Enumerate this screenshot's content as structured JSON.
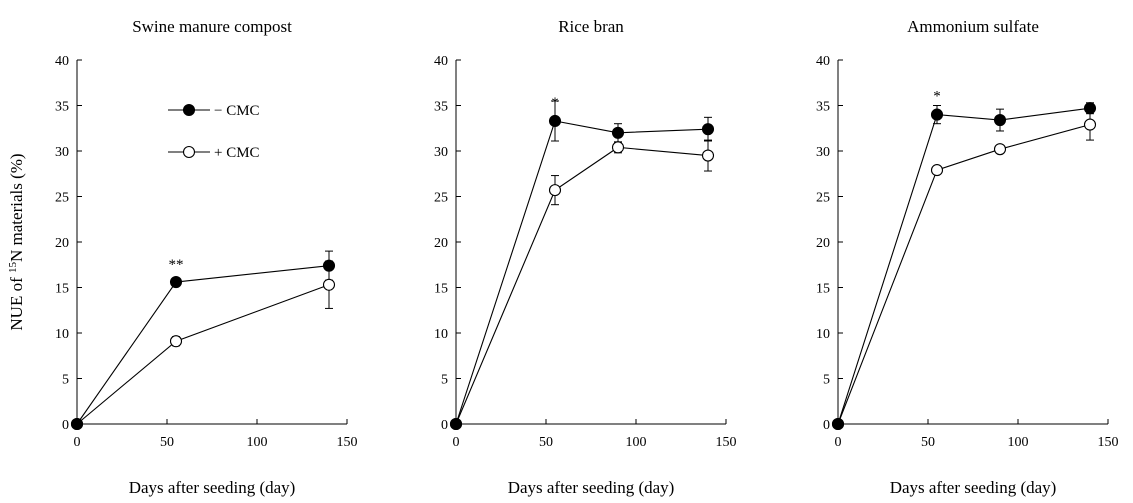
{
  "chart_data": [
    {
      "type": "line",
      "title": "Swine manure compost",
      "xlabel": "Days after seeding (day)",
      "ylabel": "NUE of 15N materials (%)",
      "xlim": [
        0,
        150
      ],
      "ylim": [
        0,
        40
      ],
      "xticks": [
        0,
        50,
        100,
        150
      ],
      "yticks": [
        0,
        5,
        10,
        15,
        20,
        25,
        30,
        35,
        40
      ],
      "legend": {
        "placement": "top-left"
      },
      "series": [
        {
          "name": "− CMC",
          "marker": "filled",
          "x": [
            0,
            55,
            140
          ],
          "y": [
            0,
            15.6,
            17.4
          ],
          "err": [
            0,
            0.4,
            1.6
          ]
        },
        {
          "name": "+ CMC",
          "marker": "open",
          "x": [
            0,
            55,
            140
          ],
          "y": [
            0,
            9.1,
            15.3
          ],
          "err": [
            0,
            0.5,
            2.6
          ]
        }
      ],
      "annotations": [
        {
          "text": "**",
          "x": 55,
          "y": 15.6
        }
      ]
    },
    {
      "type": "line",
      "title": "Rice bran",
      "xlabel": "Days after seeding (day)",
      "ylabel": "",
      "xlim": [
        0,
        150
      ],
      "ylim": [
        0,
        40
      ],
      "xticks": [
        0,
        50,
        100,
        150
      ],
      "yticks": [
        0,
        5,
        10,
        15,
        20,
        25,
        30,
        35,
        40
      ],
      "series": [
        {
          "name": "− CMC",
          "marker": "filled",
          "x": [
            0,
            55,
            90,
            140
          ],
          "y": [
            0,
            33.3,
            32.0,
            32.4
          ],
          "err": [
            0,
            2.2,
            1.0,
            1.3
          ]
        },
        {
          "name": "+ CMC",
          "marker": "open",
          "x": [
            0,
            55,
            90,
            140
          ],
          "y": [
            0,
            25.7,
            30.4,
            29.5
          ],
          "err": [
            0,
            1.6,
            0.6,
            1.7
          ]
        }
      ],
      "annotations": [
        {
          "text": "*",
          "x": 55,
          "y": 33.3
        }
      ]
    },
    {
      "type": "line",
      "title": "Ammonium sulfate",
      "xlabel": "Days after seeding (day)",
      "ylabel": "",
      "xlim": [
        0,
        150
      ],
      "ylim": [
        0,
        40
      ],
      "xticks": [
        0,
        50,
        100,
        150
      ],
      "yticks": [
        0,
        5,
        10,
        15,
        20,
        25,
        30,
        35,
        40
      ],
      "series": [
        {
          "name": "− CMC",
          "marker": "filled",
          "x": [
            0,
            55,
            90,
            140
          ],
          "y": [
            0,
            34.0,
            33.4,
            34.7
          ],
          "err": [
            0,
            1.0,
            1.2,
            0.6
          ]
        },
        {
          "name": "+ CMC",
          "marker": "open",
          "x": [
            0,
            55,
            90,
            140
          ],
          "y": [
            0,
            27.9,
            30.2,
            32.9
          ],
          "err": [
            0,
            0.3,
            0.3,
            1.7
          ]
        }
      ],
      "annotations": [
        {
          "text": "*",
          "x": 55,
          "y": 34.0
        }
      ]
    }
  ]
}
